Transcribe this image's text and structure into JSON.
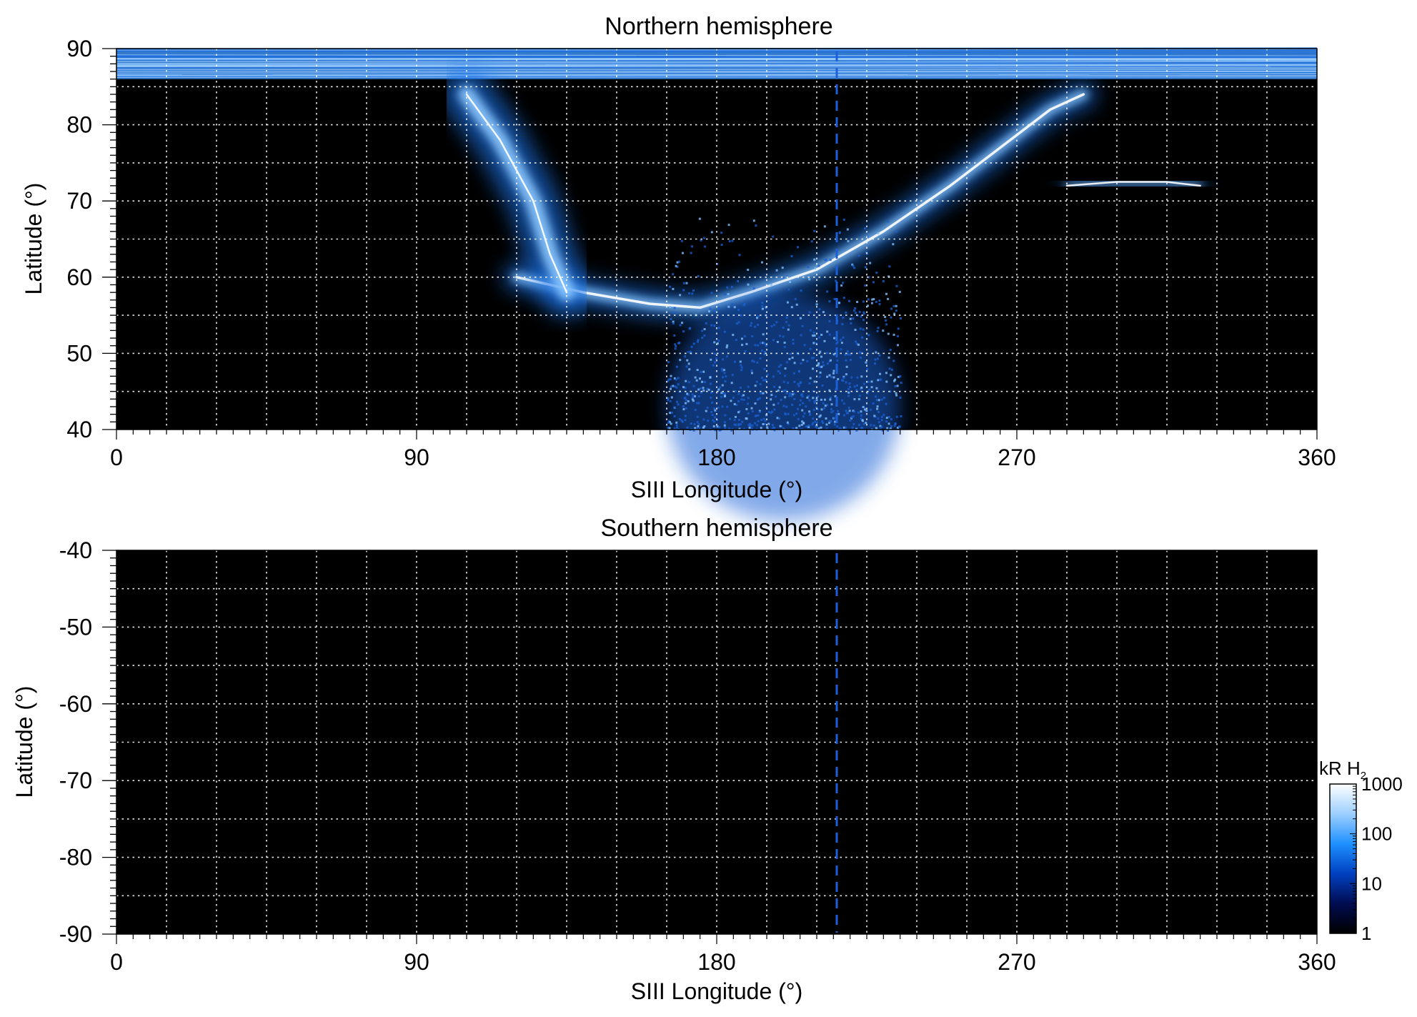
{
  "chart_data": [
    {
      "type": "heatmap",
      "title": "Northern hemisphere",
      "xlabel": "SIII Longitude (°)",
      "ylabel": "Latitude (°)",
      "xlim": [
        0,
        360
      ],
      "ylim": [
        40,
        90
      ],
      "x_ticks": [
        "0",
        "90",
        "180",
        "270",
        "360"
      ],
      "y_ticks": [
        "40",
        "50",
        "60",
        "70",
        "80",
        "90"
      ],
      "grid": true,
      "colormap": "black-blue-white",
      "emission_regions": [
        {
          "name": "main-oval-arc",
          "points": [
            [
              120,
              60
            ],
            [
              140,
              58
            ],
            [
              160,
              56.5
            ],
            [
              175,
              56
            ],
            [
              190,
              58
            ],
            [
              210,
              61
            ],
            [
              230,
              66
            ],
            [
              250,
              72
            ],
            [
              265,
              77
            ],
            [
              280,
              82
            ],
            [
              290,
              84
            ]
          ]
        },
        {
          "name": "dusk-branch",
          "points": [
            [
              285,
              72
            ],
            [
              300,
              72.5
            ],
            [
              315,
              72.5
            ],
            [
              325,
              72
            ]
          ]
        },
        {
          "name": "polar-cap-band",
          "lat_range": [
            86,
            90
          ],
          "lon_range": [
            0,
            360
          ]
        },
        {
          "name": "dawn-curtain",
          "points": [
            [
              105,
              84
            ],
            [
              115,
              78
            ],
            [
              125,
              70
            ],
            [
              130,
              63
            ],
            [
              135,
              58
            ]
          ]
        },
        {
          "name": "diffuse-equatorward",
          "lon_range": [
            165,
            235
          ],
          "lat_range": [
            40,
            55
          ]
        }
      ],
      "reference_lon": 216
    },
    {
      "type": "heatmap",
      "title": "Southern hemisphere",
      "xlabel": "SIII Longitude (°)",
      "ylabel": "Latitude (°)",
      "xlim": [
        0,
        360
      ],
      "ylim": [
        -90,
        -40
      ],
      "x_ticks": [
        "0",
        "90",
        "180",
        "270",
        "360"
      ],
      "y_ticks": [
        "-40",
        "-50",
        "-60",
        "-70",
        "-80",
        "-90"
      ],
      "grid": true,
      "emission_regions": [],
      "reference_lon": 216
    }
  ],
  "colorbar": {
    "label": "kR H",
    "label_sub": "2",
    "scale": "log",
    "range": [
      1,
      1000
    ],
    "ticks": [
      "1",
      "10",
      "100",
      "1000"
    ],
    "colors": [
      "#000000",
      "#000c50",
      "#0040c0",
      "#1e90ff",
      "#9ccfff",
      "#ffffff"
    ]
  }
}
